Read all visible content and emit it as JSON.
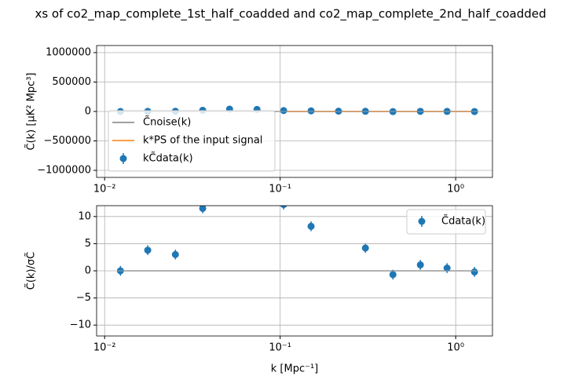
{
  "chart_data": [
    {
      "type": "errorbar",
      "title": "xs of co2_map_complete_1st_half_coadded and co2_map_complete_2nd_half_coadded",
      "ylabel": "C̃(k) [μK² Mpc³]",
      "x": [
        0.0123,
        0.0176,
        0.0253,
        0.0362,
        0.0515,
        0.0738,
        0.1047,
        0.15,
        0.215,
        0.306,
        0.439,
        0.629,
        0.893,
        1.28
      ],
      "xscale": "log",
      "xlim": [
        0.009,
        1.62
      ],
      "xticks": [
        {
          "value": 0.01,
          "label": "10⁻²"
        },
        {
          "value": 0.1,
          "label": "10⁻¹"
        },
        {
          "value": 1,
          "label": "10⁰"
        }
      ],
      "ylim": [
        -1120000,
        1120000
      ],
      "yticks": [
        {
          "value": -1000000,
          "label": "−1000000"
        },
        {
          "value": -500000,
          "label": "−500000"
        },
        0,
        500000,
        1000000
      ],
      "grid": true,
      "legend": "lower left",
      "series": [
        {
          "name": "C̃noise(k)",
          "color": "#808080",
          "style": "line",
          "values": [
            0,
            0,
            0,
            0,
            0,
            0,
            0,
            0,
            0,
            0,
            0,
            0,
            0,
            0
          ]
        },
        {
          "name": "k*PS of the input signal",
          "color": "#ff7f0e",
          "style": "line",
          "values": [
            null,
            null,
            null,
            null,
            null,
            null,
            0,
            0,
            0,
            0,
            0,
            0,
            0,
            0
          ]
        },
        {
          "name": "kC̃data(k)",
          "color": "#1f77b4",
          "style": "errorbar",
          "values": [
            0,
            2000,
            4000,
            20000,
            40000,
            35000,
            15000,
            10000,
            5000,
            3000,
            -2000,
            2000,
            1000,
            -1000
          ]
        }
      ]
    },
    {
      "type": "errorbar",
      "xlabel": "k [Mpc⁻¹]",
      "ylabel": "C̃(k)/σC̃",
      "x": [
        0.0123,
        0.0176,
        0.0253,
        0.0362,
        0.0515,
        0.0738,
        0.1047,
        0.15,
        0.215,
        0.306,
        0.439,
        0.629,
        0.893,
        1.28
      ],
      "xscale": "log",
      "xlim": [
        0.009,
        1.62
      ],
      "xticks": [
        {
          "value": 0.01,
          "label": "10⁻²"
        },
        {
          "value": 0.1,
          "label": "10⁻¹"
        },
        {
          "value": 1,
          "label": "10⁰"
        }
      ],
      "ylim": [
        -12,
        12
      ],
      "yticks": [
        {
          "value": -10,
          "label": "−10"
        },
        {
          "value": -5,
          "label": "−5"
        },
        0,
        5,
        10
      ],
      "grid": true,
      "legend": "upper right",
      "series": [
        {
          "color": "#808080",
          "style": "line",
          "values": [
            0,
            0,
            0,
            0,
            0,
            0,
            0,
            0,
            0,
            0,
            0,
            0,
            0,
            0
          ]
        },
        {
          "name": "C̃data(k)",
          "color": "#1f77b4",
          "style": "errorbar",
          "values": [
            0,
            3.8,
            3,
            11.5,
            null,
            null,
            12.2,
            8.2,
            null,
            4.2,
            -0.7,
            1.1,
            0.5,
            -0.2
          ],
          "errors": [
            0.9,
            0.9,
            0.9,
            0.9,
            null,
            null,
            0.9,
            0.9,
            null,
            0.9,
            0.9,
            0.9,
            0.9,
            0.9
          ]
        }
      ]
    }
  ]
}
